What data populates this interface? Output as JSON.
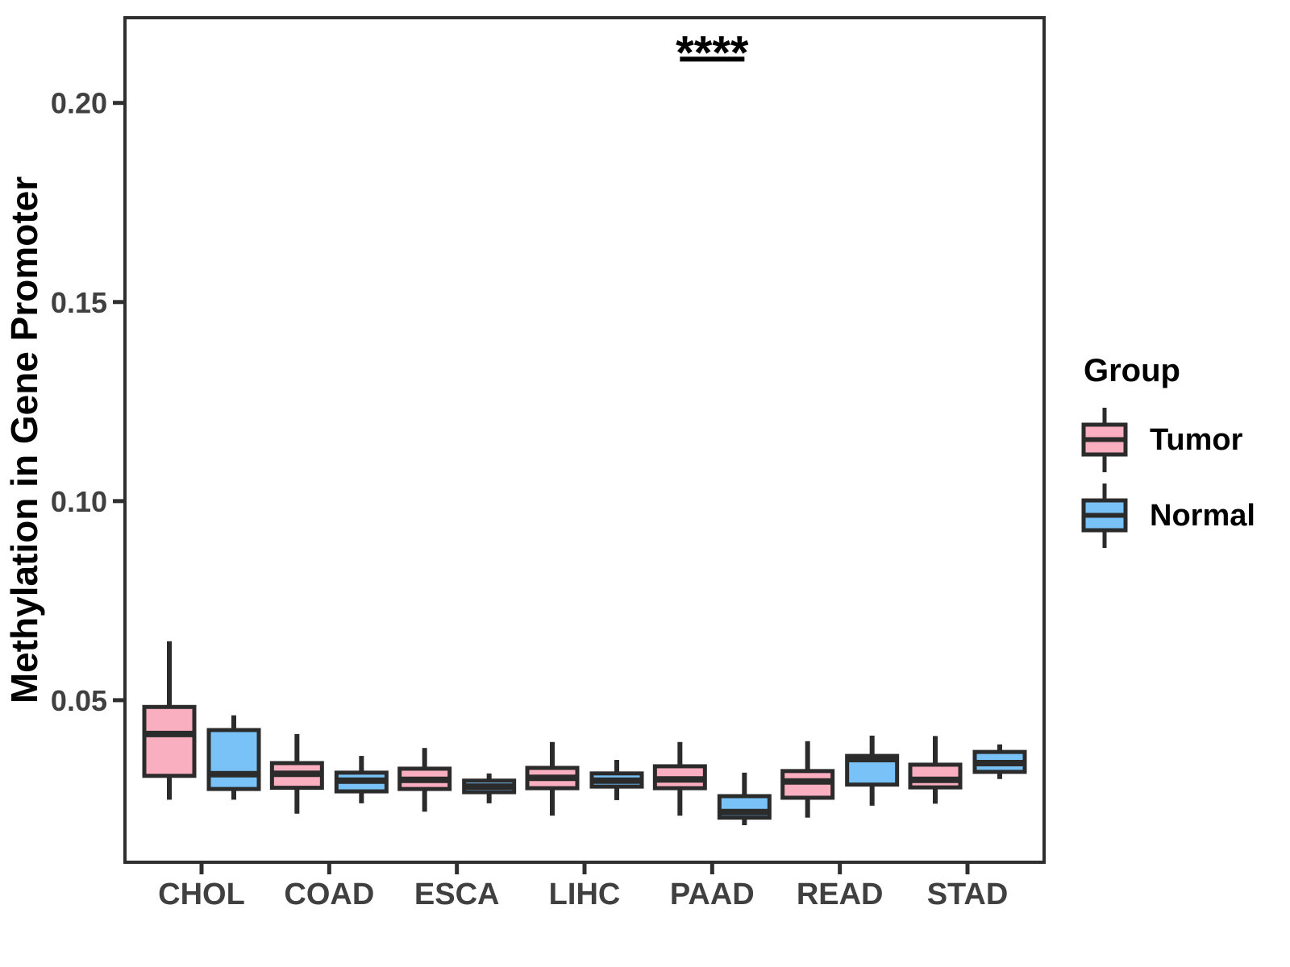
{
  "chart_data": {
    "type": "boxplot",
    "title": "",
    "xlabel": "",
    "ylabel": "Methylation in Gene Promoter",
    "categories": [
      "CHOL",
      "COAD",
      "ESCA",
      "LIHC",
      "PAAD",
      "READ",
      "STAD"
    ],
    "y_ticks": [
      "0.05",
      "0.10",
      "0.15",
      "0.20"
    ],
    "y_tick_values": [
      0.05,
      0.1,
      0.15,
      0.2
    ],
    "ylim": [
      0.0093,
      0.2214
    ],
    "grid": false,
    "legend_position": "right",
    "box_stats_order": [
      "whisker_low",
      "q1",
      "median",
      "q3",
      "whisker_high"
    ],
    "series": [
      {
        "name": "Tumor",
        "color": "#FAAFC1",
        "values": [
          [
            0.025,
            0.031,
            0.0415,
            0.0483,
            0.0648
          ],
          [
            0.0215,
            0.028,
            0.0315,
            0.0342,
            0.0415
          ],
          [
            0.022,
            0.0277,
            0.03,
            0.0328,
            0.038
          ],
          [
            0.021,
            0.0279,
            0.0305,
            0.033,
            0.0395
          ],
          [
            0.021,
            0.0279,
            0.0301,
            0.0334,
            0.0395
          ],
          [
            0.0205,
            0.0255,
            0.0296,
            0.0322,
            0.0397
          ],
          [
            0.024,
            0.0281,
            0.03,
            0.0338,
            0.041
          ]
        ]
      },
      {
        "name": "Normal",
        "color": "#78C2F8",
        "values": [
          [
            0.025,
            0.0277,
            0.0314,
            0.0425,
            0.0462
          ],
          [
            0.0241,
            0.0271,
            0.0298,
            0.0318,
            0.036
          ],
          [
            0.0241,
            0.0269,
            0.0283,
            0.0298,
            0.0316
          ],
          [
            0.0249,
            0.0283,
            0.0298,
            0.0316,
            0.035
          ],
          [
            0.0186,
            0.0205,
            0.0219,
            0.0259,
            0.0318
          ],
          [
            0.0235,
            0.0288,
            0.0352,
            0.036,
            0.0411
          ],
          [
            0.0302,
            0.032,
            0.0342,
            0.037,
            0.0389
          ]
        ]
      }
    ],
    "annotations": [
      {
        "label": "****",
        "category": "PAAD",
        "bar_y": 0.211,
        "spans": "Tumor-Normal"
      }
    ]
  },
  "legend": {
    "title": "Group",
    "entries": [
      {
        "label": "Tumor",
        "color": "#FAAFC1"
      },
      {
        "label": "Normal",
        "color": "#78C2F8"
      }
    ]
  },
  "colors": {
    "box_stroke": "#2B2B2B",
    "axis": "#2F2F2F",
    "tick_label": "#404040",
    "annotation": "#000000",
    "background": "#FFFFFF"
  }
}
